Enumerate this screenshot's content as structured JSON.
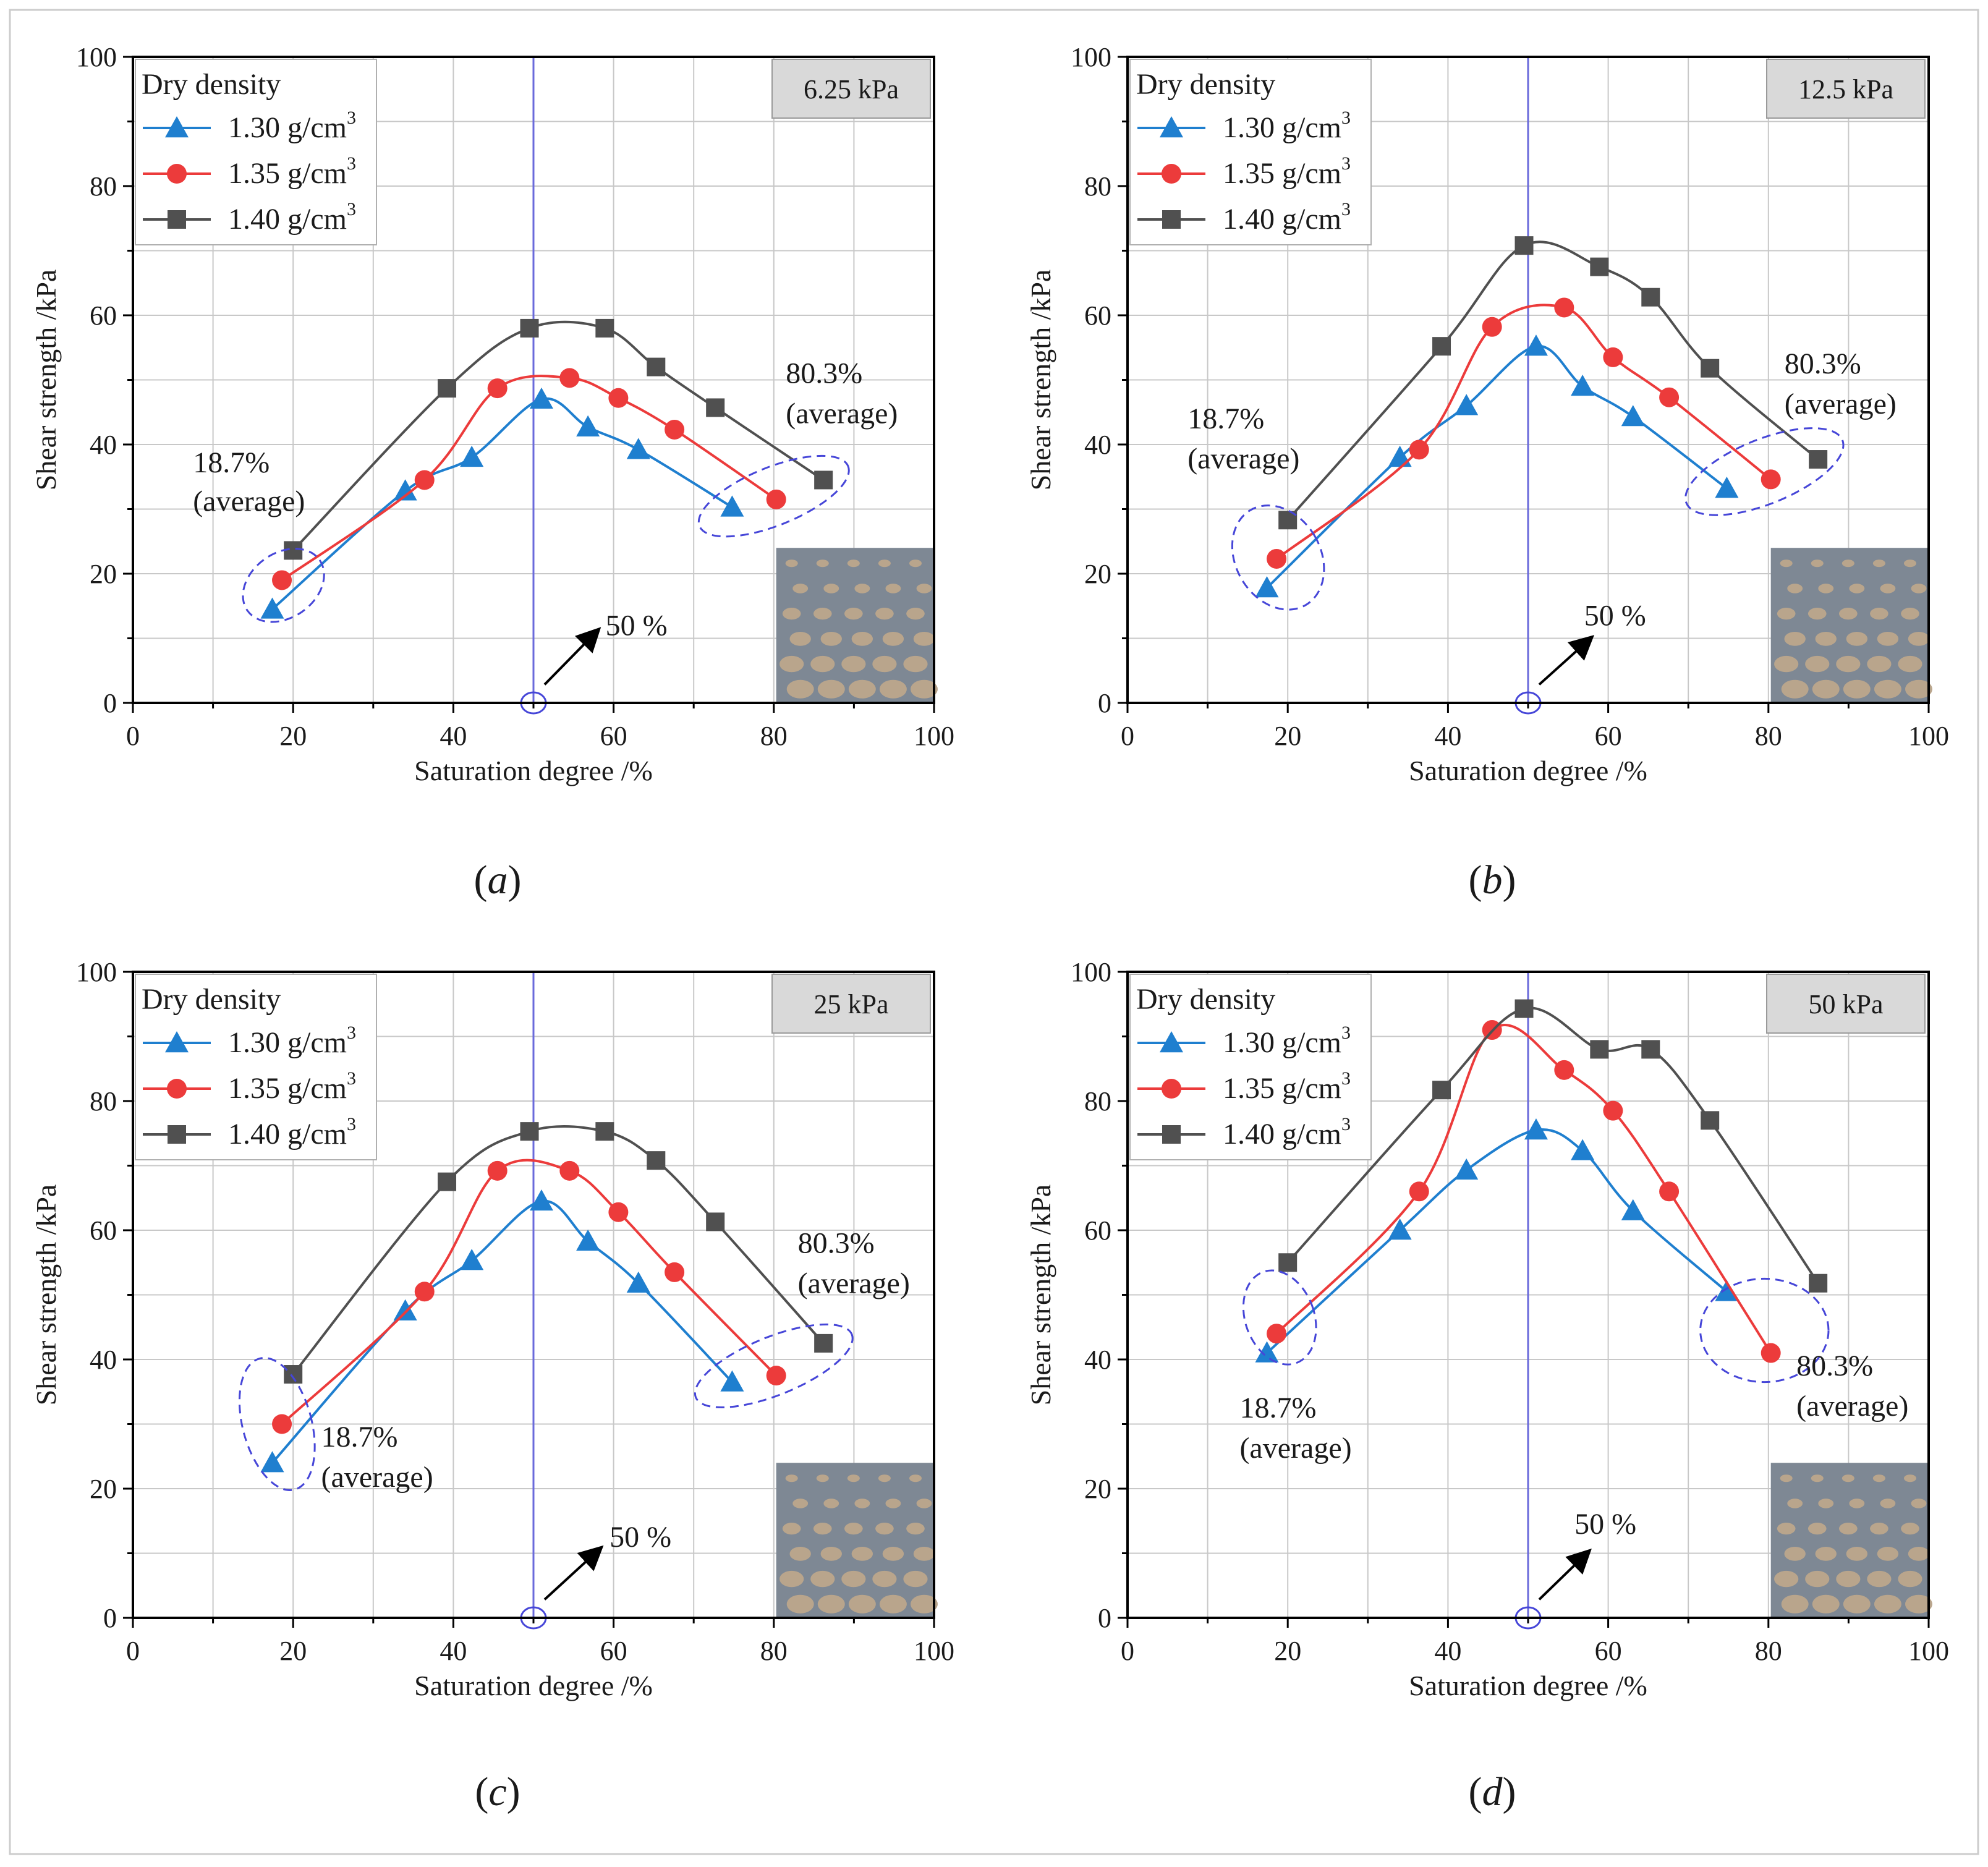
{
  "figure": {
    "frame_color": "#cccccc",
    "grid_color": "#c8c8c8",
    "ref_line_color": "#6a6adb",
    "circle_color": "#4646d8",
    "label_box_fill": "#d9d9d9",
    "photo_colors": [
      "#7e8894",
      "#b9a58c",
      "#6b7480"
    ]
  },
  "legend": {
    "title": "Dry density",
    "entries": [
      "1.30 g/cm",
      "1.35 g/cm",
      "1.40 g/cm"
    ],
    "superscript": "3"
  },
  "annotations": {
    "low": "18.7%",
    "high": "80.3%",
    "average": "(average)",
    "arrow": "50 %"
  },
  "chart_data": [
    {
      "type": "line",
      "panel": "(a)",
      "caption_text": "a",
      "pressure_label": "6.25 kPa",
      "xlabel": "Saturation degree /%",
      "ylabel": "Shear strength /kPa",
      "xlim": [
        0,
        100
      ],
      "ylim": [
        0,
        100
      ],
      "xticks": [
        "0",
        "20",
        "40",
        "60",
        "80",
        "100"
      ],
      "yticks": [
        "0",
        "20",
        "40",
        "60",
        "80",
        "100"
      ],
      "grid": true,
      "reference_x": 50,
      "series": [
        {
          "name": "1.30 g/cm3",
          "color": "#1f7fcf",
          "marker": "triangle",
          "x": [
            17.4,
            34.0,
            42.3,
            51.0,
            56.8,
            63.1,
            74.8
          ],
          "y": [
            14.5,
            32.8,
            38.0,
            47.0,
            42.7,
            39.2,
            30.3
          ]
        },
        {
          "name": "1.35 g/cm3",
          "color": "#ec3b3b",
          "marker": "circle",
          "x": [
            18.6,
            36.4,
            45.5,
            54.5,
            60.6,
            67.6,
            80.3
          ],
          "y": [
            19.0,
            34.5,
            48.7,
            50.3,
            47.2,
            42.3,
            31.5
          ]
        },
        {
          "name": "1.40 g/cm3",
          "color": "#505050",
          "marker": "square",
          "x": [
            20.0,
            39.2,
            49.5,
            58.9,
            65.3,
            72.7,
            86.2
          ],
          "y": [
            23.6,
            48.7,
            58.0,
            58.0,
            52.0,
            45.7,
            34.5
          ]
        }
      ]
    },
    {
      "type": "line",
      "panel": "(b)",
      "caption_text": "b",
      "pressure_label": "12.5 kPa",
      "xlabel": "Saturation degree /%",
      "ylabel": "Shear strength /kPa",
      "xlim": [
        0,
        100
      ],
      "ylim": [
        0,
        100
      ],
      "xticks": [
        "0",
        "20",
        "40",
        "60",
        "80",
        "100"
      ],
      "yticks": [
        "0",
        "20",
        "40",
        "60",
        "80",
        "100"
      ],
      "grid": true,
      "reference_x": 50,
      "series": [
        {
          "name": "1.30 g/cm3",
          "color": "#1f7fcf",
          "marker": "triangle",
          "x": [
            17.4,
            34.0,
            42.3,
            51.0,
            56.8,
            63.1,
            74.8
          ],
          "y": [
            17.8,
            38.0,
            46.0,
            55.2,
            49.0,
            44.3,
            33.2
          ]
        },
        {
          "name": "1.35 g/cm3",
          "color": "#ec3b3b",
          "marker": "circle",
          "x": [
            18.6,
            36.4,
            45.5,
            54.5,
            60.6,
            67.6,
            80.3
          ],
          "y": [
            22.3,
            39.2,
            58.2,
            61.2,
            53.5,
            47.3,
            34.6
          ]
        },
        {
          "name": "1.40 g/cm3",
          "color": "#505050",
          "marker": "square",
          "x": [
            20.0,
            39.2,
            49.5,
            58.9,
            65.3,
            72.7,
            86.2
          ],
          "y": [
            28.3,
            55.2,
            70.8,
            67.5,
            62.8,
            51.8,
            37.7
          ]
        }
      ]
    },
    {
      "type": "line",
      "panel": "(c)",
      "caption_text": "c",
      "pressure_label": "25 kPa",
      "xlabel": "Saturation degree /%",
      "ylabel": "Shear strength /kPa",
      "xlim": [
        0,
        100
      ],
      "ylim": [
        0,
        100
      ],
      "xticks": [
        "0",
        "20",
        "40",
        "60",
        "80",
        "100"
      ],
      "yticks": [
        "0",
        "20",
        "40",
        "60",
        "80",
        "100"
      ],
      "grid": true,
      "reference_x": 50,
      "series": [
        {
          "name": "1.30 g/cm3",
          "color": "#1f7fcf",
          "marker": "triangle",
          "x": [
            17.4,
            34.0,
            42.3,
            51.0,
            56.8,
            63.1,
            74.8
          ],
          "y": [
            24.0,
            47.5,
            55.3,
            64.5,
            58.3,
            51.8,
            36.5
          ]
        },
        {
          "name": "1.35 g/cm3",
          "color": "#ec3b3b",
          "marker": "circle",
          "x": [
            18.6,
            36.4,
            45.5,
            54.5,
            60.6,
            67.6,
            80.3
          ],
          "y": [
            30.0,
            50.5,
            69.2,
            69.2,
            62.8,
            53.5,
            37.5
          ]
        },
        {
          "name": "1.40 g/cm3",
          "color": "#505050",
          "marker": "square",
          "x": [
            20.0,
            39.2,
            49.5,
            58.9,
            65.3,
            72.7,
            86.2
          ],
          "y": [
            37.7,
            67.5,
            75.3,
            75.3,
            70.8,
            61.3,
            42.5
          ]
        }
      ]
    },
    {
      "type": "line",
      "panel": "(d)",
      "caption_text": "d",
      "pressure_label": "50 kPa",
      "xlabel": "Saturation degree /%",
      "ylabel": "Shear strength /kPa",
      "xlim": [
        0,
        100
      ],
      "ylim": [
        0,
        100
      ],
      "xticks": [
        "0",
        "20",
        "40",
        "60",
        "80",
        "100"
      ],
      "yticks": [
        "0",
        "20",
        "40",
        "60",
        "80",
        "100"
      ],
      "grid": true,
      "reference_x": 50,
      "series": [
        {
          "name": "1.30 g/cm3",
          "color": "#1f7fcf",
          "marker": "triangle",
          "x": [
            17.4,
            34.0,
            42.3,
            51.0,
            56.8,
            63.1,
            74.8
          ],
          "y": [
            41.0,
            60.0,
            69.3,
            75.5,
            72.3,
            63.0,
            50.5
          ]
        },
        {
          "name": "1.35 g/cm3",
          "color": "#ec3b3b",
          "marker": "circle",
          "x": [
            18.6,
            36.4,
            45.5,
            54.5,
            60.6,
            67.6,
            80.3
          ],
          "y": [
            44.0,
            66.0,
            91.0,
            84.8,
            78.5,
            66.0,
            41.0
          ]
        },
        {
          "name": "1.40 g/cm3",
          "color": "#505050",
          "marker": "square",
          "x": [
            20.0,
            39.2,
            49.5,
            58.9,
            65.3,
            72.7,
            86.2
          ],
          "y": [
            55.0,
            81.7,
            94.3,
            88.0,
            88.0,
            77.0,
            51.8
          ]
        }
      ]
    }
  ]
}
